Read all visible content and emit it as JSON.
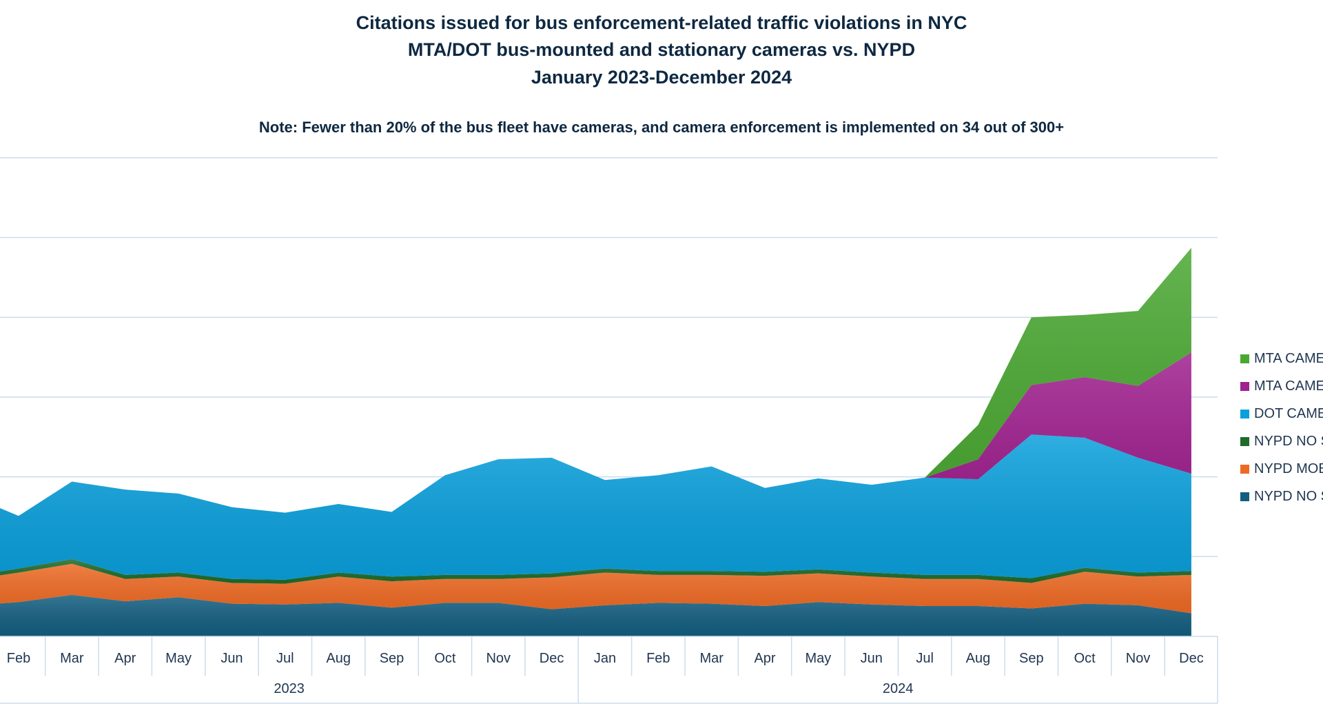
{
  "chart_data": {
    "type": "area",
    "stacked": true,
    "title": [
      "Citations issued for bus enforcement-related traffic violations in NYC",
      "MTA/DOT bus-mounted and stationary cameras vs. NYPD",
      "January 2023-December 2024"
    ],
    "note": "Note: Fewer than 20% of the bus fleet have cameras, and camera enforcement is implemented on 34 out of 300+",
    "y_units": "gridline intervals (y-axis tick labels not visible)",
    "ylim": [
      0,
      6
    ],
    "grid": true,
    "legend_position": "right",
    "categories": [
      "Jan",
      "Feb",
      "Mar",
      "Apr",
      "May",
      "Jun",
      "Jul",
      "Aug",
      "Sep",
      "Oct",
      "Nov",
      "Dec",
      "Jan",
      "Feb",
      "Mar",
      "Apr",
      "May",
      "Jun",
      "Jul",
      "Aug",
      "Sep",
      "Oct",
      "Nov",
      "Dec"
    ],
    "visible_categories_from_index": 1,
    "years": [
      {
        "label": "2023",
        "months": 12
      },
      {
        "label": "2024",
        "months": 12
      }
    ],
    "series": [
      {
        "name": "NYPD NO S",
        "color": "#135e80",
        "values": [
          0.38,
          0.43,
          0.52,
          0.44,
          0.49,
          0.41,
          0.4,
          0.42,
          0.36,
          0.42,
          0.42,
          0.34,
          0.39,
          0.42,
          0.41,
          0.38,
          0.43,
          0.4,
          0.38,
          0.38,
          0.35,
          0.41,
          0.39,
          0.29
        ]
      },
      {
        "name": "NYPD MOB",
        "color": "#ee6a24",
        "values": [
          0.32,
          0.37,
          0.39,
          0.28,
          0.26,
          0.26,
          0.26,
          0.33,
          0.33,
          0.3,
          0.3,
          0.4,
          0.41,
          0.35,
          0.36,
          0.38,
          0.36,
          0.35,
          0.34,
          0.34,
          0.32,
          0.4,
          0.36,
          0.48
        ]
      },
      {
        "name": "NYPD NO S",
        "color": "#1e6b2a",
        "values": [
          0.05,
          0.05,
          0.06,
          0.05,
          0.05,
          0.05,
          0.05,
          0.05,
          0.06,
          0.05,
          0.05,
          0.05,
          0.05,
          0.05,
          0.05,
          0.05,
          0.05,
          0.05,
          0.05,
          0.05,
          0.06,
          0.05,
          0.05,
          0.05
        ]
      },
      {
        "name": "DOT CAME",
        "color": "#0aa0dc",
        "values": [
          1.04,
          0.66,
          0.97,
          1.07,
          0.99,
          0.9,
          0.84,
          0.86,
          0.81,
          1.25,
          1.45,
          1.45,
          1.11,
          1.2,
          1.31,
          1.05,
          1.14,
          1.1,
          1.22,
          1.2,
          1.8,
          1.63,
          1.44,
          1.22
        ]
      },
      {
        "name": "MTA CAME",
        "color": "#a0208f",
        "values": [
          0,
          0,
          0,
          0,
          0,
          0,
          0,
          0,
          0,
          0,
          0,
          0,
          0,
          0,
          0,
          0,
          0,
          0,
          0,
          0.25,
          0.62,
          0.76,
          0.9,
          1.52
        ]
      },
      {
        "name": "MTA CAME",
        "color": "#4aa832",
        "values": [
          0,
          0,
          0,
          0,
          0,
          0,
          0,
          0,
          0,
          0,
          0,
          0,
          0,
          0,
          0,
          0,
          0,
          0,
          0,
          0.43,
          0.85,
          0.78,
          0.94,
          1.31
        ]
      }
    ]
  }
}
